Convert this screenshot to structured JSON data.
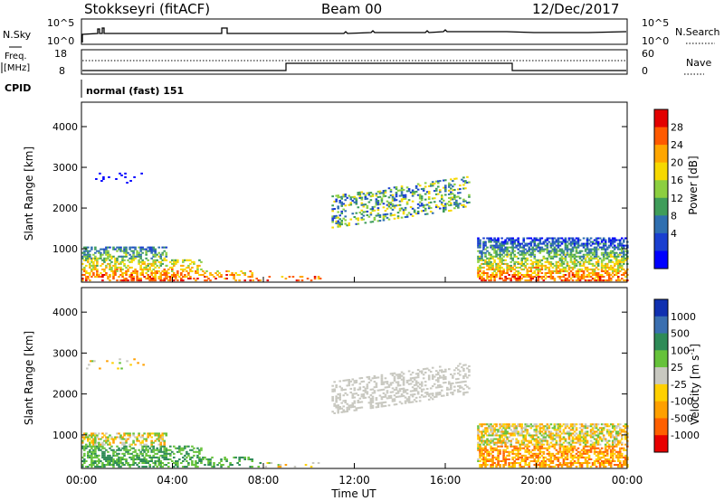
{
  "header": {
    "station": "Stokkseyri (fitACF)",
    "beam": "Beam 00",
    "date": "12/Dec/2017"
  },
  "noise_panel": {
    "left_label": "N.Sky",
    "left_ticks": [
      "10^5",
      "10^0"
    ],
    "right_ticks": [
      "10^5",
      "10^0"
    ],
    "right_label": "N.Search"
  },
  "freq_panel": {
    "left_label_1": "Freq.",
    "left_label_2": "[MHz]",
    "left_ticks": [
      "18",
      "8"
    ],
    "right_ticks": [
      "60",
      "0"
    ],
    "right_label": "Nave"
  },
  "cpid": {
    "label": "CPID",
    "value": "normal (fast) 151"
  },
  "chart_data": [
    {
      "type": "heatmap",
      "quantity": "Power",
      "ylabel": "Slant Range [km]",
      "xlabel": "",
      "ylim": [
        180,
        4600
      ],
      "yticks": [
        "4000",
        "3000",
        "2000",
        "1000"
      ],
      "colorbar": {
        "label": "Power [dB]",
        "ticks": [
          "28",
          "24",
          "20",
          "16",
          "12",
          "8",
          "4"
        ],
        "colors": [
          "#e30000",
          "#ff5a00",
          "#ffa600",
          "#f6d800",
          "#8ccf40",
          "#3f9d5a",
          "#2f6fb0",
          "#1a3fd0",
          "#0000ff"
        ]
      }
    },
    {
      "type": "heatmap",
      "quantity": "Velocity",
      "ylabel": "Slant Range [km]",
      "xlabel": "Time UT",
      "ylim": [
        180,
        4600
      ],
      "yticks": [
        "4000",
        "3000",
        "2000",
        "1000"
      ],
      "xticks": [
        "00:00",
        "04:00",
        "08:00",
        "12:00",
        "16:00",
        "20:00",
        "00:00"
      ],
      "colorbar": {
        "label": "Velocity [m s",
        "label_exp": "-1",
        "label_close": "]",
        "ticks": [
          "1000",
          "500",
          "100",
          "25",
          "-25",
          "-100",
          "-500",
          "-1000"
        ],
        "colors": [
          "#1030b0",
          "#3a6fb0",
          "#2e8b57",
          "#66c23a",
          "#c8c8c0",
          "#ffd000",
          "#ffa000",
          "#ff6000",
          "#e80000"
        ]
      }
    }
  ]
}
